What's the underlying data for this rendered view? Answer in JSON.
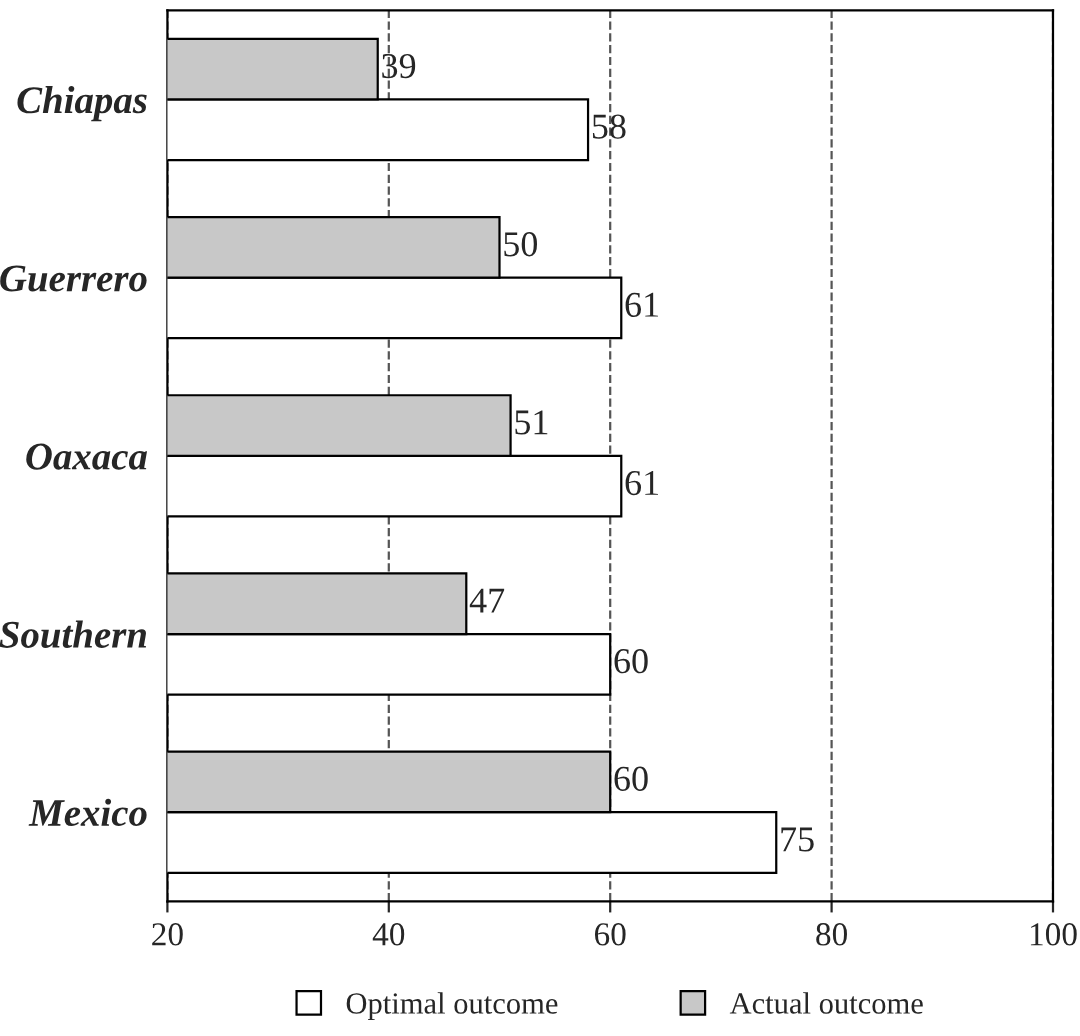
{
  "chart_data": {
    "type": "bar",
    "orientation": "horizontal",
    "categories": [
      "Chiapas",
      "Guerrero",
      "Oaxaca",
      "Southern",
      "Mexico"
    ],
    "series": [
      {
        "name": "Optimal outcome",
        "color": "#ffffff",
        "values": [
          58,
          61,
          61,
          60,
          75
        ]
      },
      {
        "name": "Actual outcome",
        "color": "#c8c8c8",
        "values": [
          39,
          50,
          51,
          47,
          60
        ]
      }
    ],
    "xlim": [
      20,
      100
    ],
    "xticks": [
      20,
      40,
      60,
      80,
      100
    ],
    "grid": "x",
    "legend": "bottom",
    "data_labels": true
  }
}
